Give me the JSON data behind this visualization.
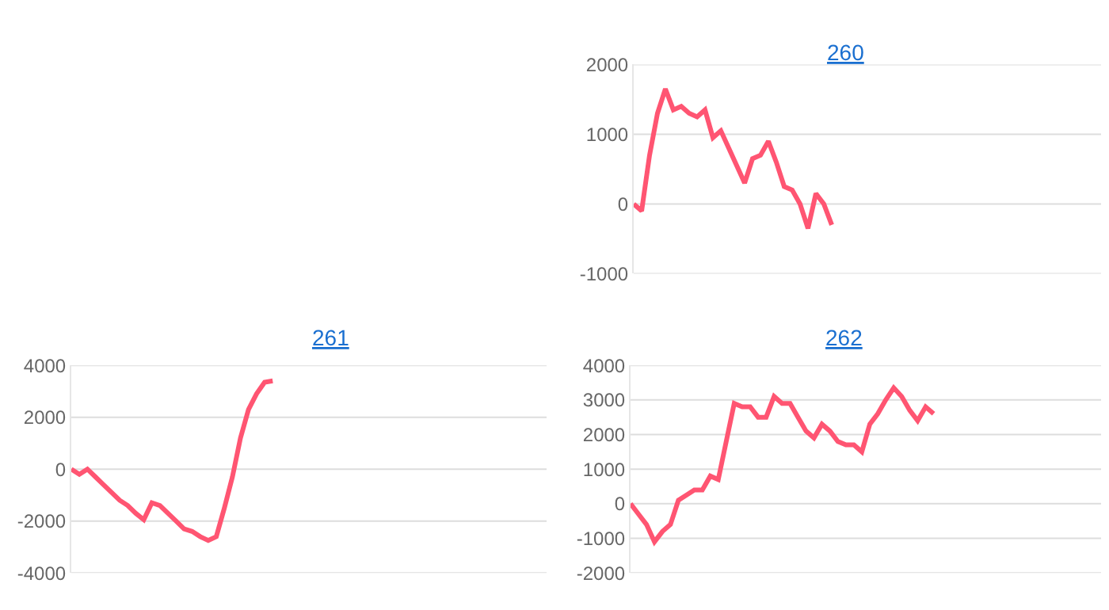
{
  "chart_data": [
    {
      "type": "line",
      "title": "260",
      "categories": [
        null,
        null,
        null,
        null,
        null,
        null,
        null,
        null,
        null,
        null,
        null,
        null,
        null,
        null,
        null,
        null,
        null,
        null,
        null,
        null,
        null,
        null,
        null,
        null,
        null,
        null,
        null,
        null,
        null,
        null,
        null,
        null,
        null,
        null,
        null,
        null,
        null,
        null,
        null,
        null,
        null,
        null,
        null,
        null,
        null,
        null,
        null,
        null,
        null,
        null,
        null,
        null,
        null,
        null,
        null,
        null,
        null,
        null,
        null,
        null
      ],
      "series": [
        {
          "color": "#ff5572",
          "values": [
            0,
            -100,
            700,
            1300,
            1650,
            1350,
            1400,
            1300,
            1250,
            1350,
            950,
            1050,
            800,
            550,
            300,
            650,
            700,
            900,
            600,
            250,
            200,
            0,
            -350,
            150,
            0,
            -300,
            null,
            null,
            null,
            null,
            null,
            null,
            null,
            null,
            null,
            null,
            null,
            null,
            null,
            null,
            null,
            null,
            null,
            null,
            null,
            null,
            null,
            null,
            null,
            null,
            null,
            null,
            null,
            null,
            null,
            null,
            null,
            null,
            null,
            null
          ]
        }
      ],
      "ylim": [
        -1000,
        2000
      ],
      "yticks": [
        -1000,
        0,
        1000,
        2000
      ],
      "grid": true,
      "tick_labels": "y",
      "marker": "none",
      "line_style": "solid"
    },
    {
      "type": "line",
      "title": "261",
      "categories": [
        null,
        null,
        null,
        null,
        null,
        null,
        null,
        null,
        null,
        null,
        null,
        null,
        null,
        null,
        null,
        null,
        null,
        null,
        null,
        null,
        null,
        null,
        null,
        null,
        null,
        null,
        null,
        null,
        null,
        null,
        null,
        null,
        null,
        null,
        null,
        null,
        null,
        null,
        null,
        null,
        null,
        null,
        null,
        null,
        null,
        null,
        null,
        null,
        null,
        null,
        null,
        null,
        null,
        null,
        null,
        null,
        null,
        null,
        null,
        null
      ],
      "series": [
        {
          "color": "#ff5572",
          "values": [
            0,
            -200,
            0,
            -300,
            -600,
            -900,
            -1200,
            -1400,
            -1700,
            -1950,
            -1300,
            -1400,
            -1700,
            -2000,
            -2300,
            -2400,
            -2600,
            -2750,
            -2600,
            -1500,
            -300,
            1200,
            2300,
            2900,
            3350,
            3400,
            null,
            null,
            null,
            null,
            null,
            null,
            null,
            null,
            null,
            null,
            null,
            null,
            null,
            null,
            null,
            null,
            null,
            null,
            null,
            null,
            null,
            null,
            null,
            null,
            null,
            null,
            null,
            null,
            null,
            null,
            null,
            null,
            null,
            null
          ]
        }
      ],
      "ylim": [
        -4000,
        4000
      ],
      "yticks": [
        -4000,
        -2000,
        0,
        2000,
        4000
      ],
      "grid": true,
      "tick_labels": "y",
      "marker": "none",
      "line_style": "solid"
    },
    {
      "type": "line",
      "title": "262",
      "categories": [
        null,
        null,
        null,
        null,
        null,
        null,
        null,
        null,
        null,
        null,
        null,
        null,
        null,
        null,
        null,
        null,
        null,
        null,
        null,
        null,
        null,
        null,
        null,
        null,
        null,
        null,
        null,
        null,
        null,
        null,
        null,
        null,
        null,
        null,
        null,
        null,
        null,
        null,
        null,
        null,
        null,
        null,
        null,
        null,
        null,
        null,
        null,
        null,
        null,
        null,
        null,
        null,
        null,
        null,
        null,
        null,
        null,
        null,
        null,
        null
      ],
      "series": [
        {
          "color": "#ff5572",
          "values": [
            0,
            -300,
            -600,
            -1100,
            -800,
            -600,
            100,
            250,
            400,
            400,
            800,
            700,
            1800,
            2900,
            2800,
            2800,
            2500,
            2500,
            3100,
            2900,
            2900,
            2500,
            2100,
            1900,
            2300,
            2100,
            1800,
            1700,
            1700,
            1500,
            2300,
            2600,
            3000,
            3350,
            3100,
            2700,
            2400,
            2800,
            2600,
            null,
            null,
            null,
            null,
            null,
            null,
            null,
            null,
            null,
            null,
            null,
            null,
            null,
            null,
            null,
            null,
            null,
            null,
            null,
            null,
            null
          ]
        }
      ],
      "ylim": [
        -2000,
        4000
      ],
      "yticks": [
        -2000,
        -1000,
        0,
        1000,
        2000,
        3000,
        4000
      ],
      "grid": true,
      "tick_labels": "y",
      "marker": "none",
      "line_style": "solid"
    }
  ]
}
